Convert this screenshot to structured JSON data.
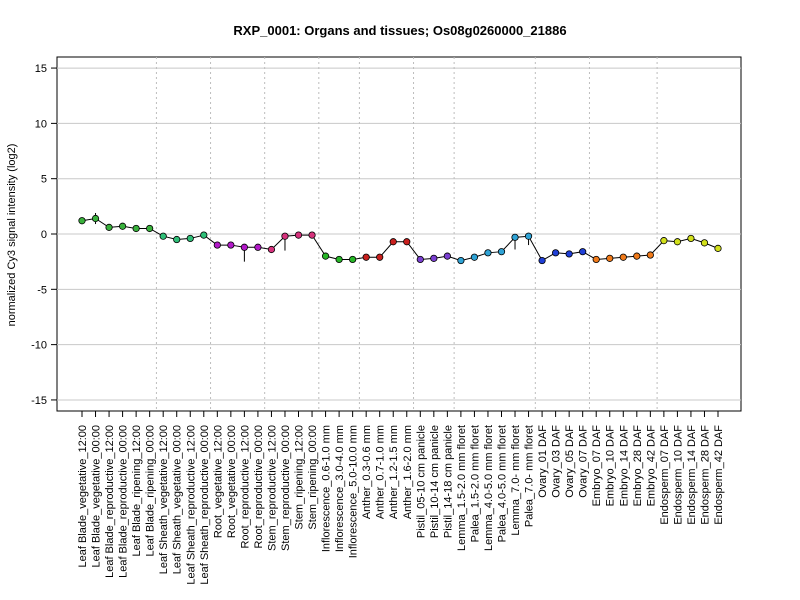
{
  "chart_data": {
    "type": "line",
    "title": "RXP_0001: Organs and tissues; Os08g0260000_21886",
    "xlabel": "",
    "ylabel": "normalized Cy3 signal intensity (log2)",
    "ylim": [
      -16,
      16
    ],
    "yticks": [
      -15,
      -10,
      -5,
      0,
      5,
      10,
      15
    ],
    "grid": true,
    "categories": [
      "Leaf Blade_vegetative_12:00",
      "Leaf Blade_vegetative_00:00",
      "Leaf Blade_reproductive_12:00",
      "Leaf Blade_reproductive_00:00",
      "Leaf Blade_ripening_12:00",
      "Leaf Blade_ripening_00:00",
      "Leaf Sheath_vegetative_12:00",
      "Leaf Sheath_vegetative_00:00",
      "Leaf Sheath_reproductive_12:00",
      "Leaf Sheath_reproductive_00:00",
      "Root_vegetative_12:00",
      "Root_vegetative_00:00",
      "Root_reproductive_12:00",
      "Root_reproductive_00:00",
      "Stem_reproductive_12:00",
      "Stem_reproductive_00:00",
      "Stem_ripening_12:00",
      "Stem_ripening_00:00",
      "Inflorescence_0.6-1.0 mm",
      "Inflorescence_3.0-4.0 mm",
      "Inflorescence_5.0-10.0 mm",
      "Anther_0.3-0.6 mm",
      "Anther_0.7-1.0 mm",
      "Anther_1.2-1.5 mm",
      "Anther_1.6-2.0 mm",
      "Pistil_05-10 cm panicle",
      "Pistil_10-14 cm panicle",
      "Pistil_14-18 cm panicle",
      "Lemma_1.5-2.0 mm floret",
      "Palea_1.5-2.0 mm floret",
      "Lemma_4.0-5.0 mm floret",
      "Palea_4.0-5.0 mm floret",
      "Lemma_7.0- mm floret",
      "Palea_7.0- mm floret",
      "Ovary_01 DAF",
      "Ovary_03 DAF",
      "Ovary_05 DAF",
      "Ovary_07 DAF",
      "Embryo_07 DAF",
      "Embryo_10 DAF",
      "Embryo_14 DAF",
      "Embryo_28 DAF",
      "Embryo_42 DAF",
      "Endosperm_07 DAF",
      "Endosperm_10 DAF",
      "Endosperm_14 DAF",
      "Endosperm_28 DAF",
      "Endosperm_42 DAF"
    ],
    "values": [
      1.2,
      1.4,
      0.6,
      0.7,
      0.5,
      0.5,
      -0.2,
      -0.5,
      -0.4,
      -0.1,
      -1.0,
      -1.0,
      -1.2,
      -1.2,
      -1.4,
      -0.2,
      -0.1,
      -0.1,
      -2.0,
      -2.3,
      -2.3,
      -2.1,
      -2.1,
      -0.7,
      -0.7,
      -2.3,
      -2.2,
      -2.0,
      -2.4,
      -2.1,
      -1.7,
      -1.6,
      -0.3,
      -0.2,
      -2.4,
      -1.7,
      -1.8,
      -1.6,
      -2.3,
      -2.2,
      -2.1,
      -2.0,
      -1.9,
      -0.6,
      -0.7,
      -0.4,
      -0.8,
      -1.3
    ],
    "err_low": [
      0.9,
      0.9,
      0.5,
      0.6,
      0.4,
      0.4,
      -0.3,
      -0.7,
      -0.6,
      -0.2,
      -1.1,
      -1.2,
      -2.5,
      -1.3,
      -1.5,
      -1.5,
      -0.3,
      -0.2,
      -2.2,
      -2.4,
      -2.4,
      -2.2,
      -2.2,
      -0.9,
      -0.8,
      -2.4,
      -2.3,
      -2.1,
      -2.5,
      -2.2,
      -1.8,
      -1.7,
      -1.4,
      -1.0,
      -2.5,
      -1.8,
      -1.9,
      -1.7,
      -2.5,
      -2.3,
      -2.2,
      -2.1,
      -2.0,
      -0.7,
      -0.8,
      -0.5,
      -0.9,
      -1.4
    ],
    "err_high": [
      1.5,
      1.9,
      0.7,
      0.8,
      0.6,
      0.6,
      -0.1,
      -0.3,
      -0.1,
      0.0,
      -0.9,
      -0.8,
      -1.1,
      -1.1,
      -1.3,
      0.0,
      0.1,
      0.0,
      -1.8,
      -2.2,
      -2.2,
      -2.0,
      -2.0,
      -0.5,
      -0.6,
      -2.2,
      -2.1,
      -1.9,
      -2.3,
      -2.0,
      -1.6,
      -1.5,
      -0.2,
      0.1,
      -2.3,
      -1.6,
      -1.7,
      -1.5,
      -2.1,
      -2.1,
      -2.0,
      -1.9,
      -1.8,
      -0.5,
      -0.6,
      -0.3,
      -0.7,
      -1.2
    ],
    "colors": [
      "#39b13c",
      "#39b13c",
      "#39b13c",
      "#39b13c",
      "#39b13c",
      "#39b13c",
      "#2fbf78",
      "#2fbf78",
      "#2fbf78",
      "#2fbf78",
      "#b21ac8",
      "#b21ac8",
      "#b21ac8",
      "#b21ac8",
      "#d6327c",
      "#d6327c",
      "#d6327c",
      "#d6327c",
      "#27b627",
      "#27b627",
      "#27b627",
      "#c9201e",
      "#c9201e",
      "#c9201e",
      "#c9201e",
      "#7a3fd1",
      "#7a3fd1",
      "#7a3fd1",
      "#2fa3d6",
      "#2fa3d6",
      "#2fa3d6",
      "#2fa3d6",
      "#2fa3d6",
      "#2fa3d6",
      "#1f3fd6",
      "#1f3fd6",
      "#1f3fd6",
      "#1f3fd6",
      "#f07a1a",
      "#f07a1a",
      "#f07a1a",
      "#f07a1a",
      "#f07a1a",
      "#d2e01a",
      "#d2e01a",
      "#d2e01a",
      "#d2e01a",
      "#d2e01a"
    ],
    "group_boundaries_after": [
      5,
      9,
      13,
      17,
      20,
      24,
      27,
      33,
      37,
      42
    ]
  }
}
